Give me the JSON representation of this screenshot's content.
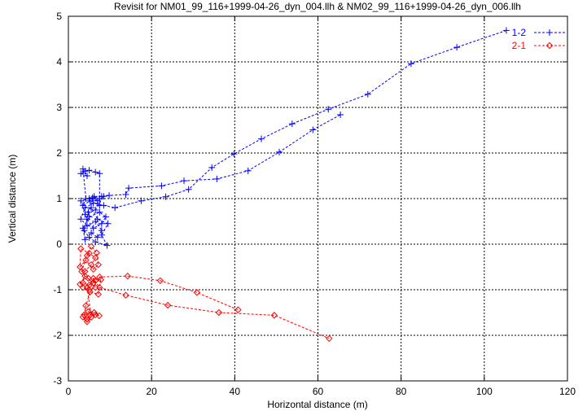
{
  "chart_data": {
    "type": "line",
    "title": "Revisit for NM01_99_116+1999-04-26_dyn_004.llh & NM02_99_116+1999-04-26_dyn_006.llh",
    "xlabel": "Horizontal distance (m)",
    "ylabel": "Vertical distance (m)",
    "xlim": [
      0,
      120
    ],
    "ylim": [
      -3,
      5
    ],
    "xticks": [
      0,
      20,
      40,
      60,
      80,
      100,
      120
    ],
    "yticks": [
      -3,
      -2,
      -1,
      0,
      1,
      2,
      3,
      4,
      5
    ],
    "grid": true,
    "legend_position": "top-right",
    "series": [
      {
        "name": "1-2",
        "color": "#0000ff",
        "marker": "plus",
        "points": [
          [
            105.3,
            4.69
          ],
          [
            93.4,
            4.32
          ],
          [
            82.4,
            3.96
          ],
          [
            72.0,
            3.29
          ],
          [
            62.5,
            2.96
          ],
          [
            53.8,
            2.64
          ],
          [
            46.4,
            2.31
          ],
          [
            39.8,
            1.98
          ],
          [
            34.5,
            1.68
          ],
          [
            28.9,
            1.2
          ],
          [
            23.4,
            1.04
          ],
          [
            17.5,
            0.95
          ],
          [
            11.2,
            0.8
          ],
          [
            8.5,
            0.85
          ],
          [
            6,
            0.9
          ],
          [
            4,
            0.8
          ],
          [
            3,
            0.55
          ],
          [
            4.5,
            0.4
          ],
          [
            6.5,
            0.5
          ],
          [
            8,
            0.3
          ],
          [
            7,
            0.15
          ],
          [
            5.5,
            0.25
          ],
          [
            4,
            0.1
          ],
          [
            3.5,
            0.35
          ],
          [
            5,
            0.6
          ],
          [
            7.5,
            0.7
          ],
          [
            9,
            0.6
          ],
          [
            8,
            0.45
          ],
          [
            6,
            0.35
          ],
          [
            4.5,
            0.55
          ],
          [
            3,
            0.95
          ],
          [
            5,
            1.0
          ],
          [
            7,
            0.95
          ],
          [
            8.5,
            1.05
          ],
          [
            6.5,
            0.75
          ],
          [
            4,
            0.65
          ],
          [
            5.5,
            0.8
          ],
          [
            7,
            0.55
          ],
          [
            9.5,
            0.45
          ],
          [
            8,
            0.2
          ],
          [
            9.3,
            -0.03
          ],
          [
            6.5,
            0.05
          ],
          [
            5,
            0.15
          ],
          [
            3.8,
            0.3
          ],
          [
            4.8,
            0.7
          ],
          [
            6.2,
            1.05
          ],
          [
            7.5,
            0.85
          ],
          [
            5.2,
            0.95
          ],
          [
            3.5,
            0.85
          ],
          [
            4.2,
            1.0
          ],
          [
            7.5,
            1.0
          ],
          [
            7.5,
            1.55
          ],
          [
            6.5,
            1.58
          ],
          [
            5,
            1.62
          ],
          [
            4,
            1.6
          ],
          [
            3,
            1.55
          ],
          [
            4.5,
            1.5
          ],
          [
            3.5,
            1.65
          ],
          [
            4.2,
            1.0
          ],
          [
            5.8,
            1.02
          ],
          [
            8,
            1.05
          ],
          [
            9.8,
            1.07
          ],
          [
            13.8,
            1.09
          ],
          [
            14.5,
            1.23
          ],
          [
            22.4,
            1.28
          ],
          [
            27.8,
            1.39
          ],
          [
            35.7,
            1.43
          ],
          [
            43.2,
            1.61
          ],
          [
            50.7,
            2.02
          ],
          [
            58.8,
            2.51
          ],
          [
            65.4,
            2.84
          ]
        ]
      },
      {
        "name": "2-1",
        "color": "#ff0000",
        "marker": "diamond",
        "points": [
          [
            40.8,
            -1.44
          ],
          [
            30.9,
            -1.06
          ],
          [
            22.1,
            -0.8
          ],
          [
            14.25,
            -0.7
          ],
          [
            7.5,
            -0.72
          ],
          [
            6.5,
            -0.8
          ],
          [
            5,
            -0.9
          ],
          [
            3.5,
            -0.85
          ],
          [
            4,
            -0.6
          ],
          [
            5.5,
            -0.45
          ],
          [
            6.5,
            -0.3
          ],
          [
            5,
            -0.2
          ],
          [
            3,
            -0.1
          ],
          [
            2.8,
            -0.5
          ],
          [
            4.2,
            -0.35
          ],
          [
            6,
            -0.55
          ],
          [
            7.2,
            -0.45
          ],
          [
            6.8,
            -0.19
          ],
          [
            5.5,
            -0.05
          ],
          [
            4.5,
            -0.25
          ],
          [
            3.2,
            -0.6
          ],
          [
            4.8,
            -0.75
          ],
          [
            6.5,
            -0.95
          ],
          [
            5,
            -1.0
          ],
          [
            3.5,
            -0.95
          ],
          [
            2.8,
            -0.88
          ],
          [
            4,
            -0.7
          ],
          [
            6,
            -0.85
          ],
          [
            7.8,
            -0.78
          ],
          [
            7.2,
            -1.1
          ],
          [
            5.2,
            -1.05
          ],
          [
            4.2,
            -1.35
          ],
          [
            3.8,
            -1.55
          ],
          [
            4.5,
            -1.65
          ],
          [
            5.2,
            -1.55
          ],
          [
            6.5,
            -1.55
          ],
          [
            7.4,
            -1.57
          ],
          [
            6.2,
            -1.5
          ],
          [
            4.8,
            -1.48
          ],
          [
            3.5,
            -1.6
          ],
          [
            4.5,
            -1.7
          ],
          [
            5.5,
            -1.6
          ],
          [
            4.5,
            -0.95
          ],
          [
            6,
            -0.75
          ],
          [
            7.5,
            -0.95
          ],
          [
            13.8,
            -1.12
          ],
          [
            23.9,
            -1.34
          ],
          [
            36.2,
            -1.5
          ],
          [
            49.5,
            -1.56
          ],
          [
            62.7,
            -2.07
          ]
        ]
      }
    ]
  }
}
